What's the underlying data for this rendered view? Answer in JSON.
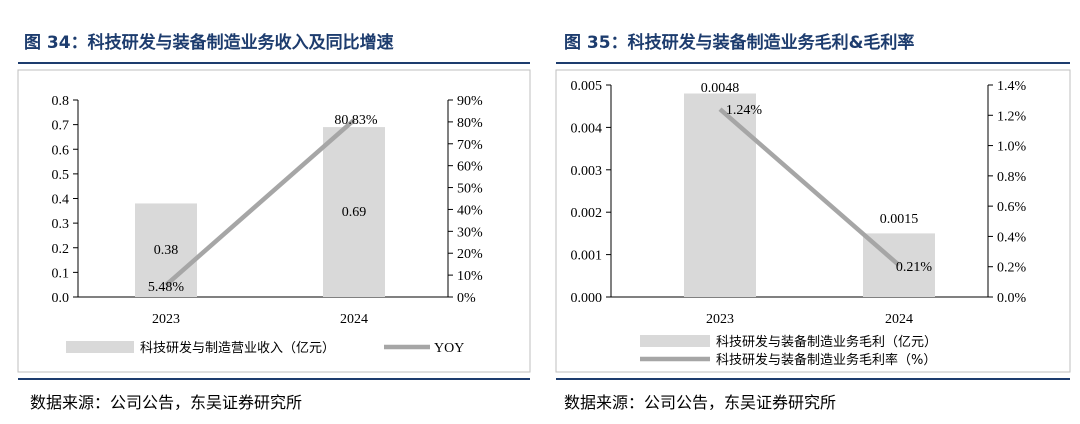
{
  "left": {
    "title": "图 34：科技研发与装备制造业务收入及同比增速",
    "source": "数据来源：公司公告，东吴证券研究所",
    "chart_data": {
      "type": "bar",
      "categories": [
        "2023",
        "2024"
      ],
      "series": [
        {
          "name": "科技研发与制造营业收入（亿元）",
          "type": "bar",
          "axis": "left",
          "values": [
            0.38,
            0.69
          ],
          "labels": [
            "0.38",
            "0.69"
          ],
          "color": "#d9d9d9"
        },
        {
          "name": "YOY",
          "type": "line",
          "axis": "right",
          "values": [
            5.48,
            80.83
          ],
          "labels": [
            "5.48%",
            "80.83%"
          ],
          "color": "#a6a6a6"
        }
      ],
      "ylim_left": [
        0,
        0.8
      ],
      "yticks_left": [
        "0.0",
        "0.1",
        "0.2",
        "0.3",
        "0.4",
        "0.5",
        "0.6",
        "0.7",
        "0.8"
      ],
      "ylim_right": [
        0,
        90
      ],
      "yticks_right": [
        "0%",
        "10%",
        "20%",
        "30%",
        "40%",
        "50%",
        "60%",
        "70%",
        "80%",
        "90%"
      ],
      "legend": "bottom",
      "grid": false
    }
  },
  "right": {
    "title": "图 35：科技研发与装备制造业务毛利&毛利率",
    "source": "数据来源：公司公告，东吴证券研究所",
    "chart_data": {
      "type": "bar",
      "categories": [
        "2023",
        "2024"
      ],
      "series": [
        {
          "name": "科技研发与装备制造业务毛利（亿元）",
          "type": "bar",
          "axis": "left",
          "values": [
            0.0048,
            0.0015
          ],
          "labels": [
            "0.0048",
            "0.0015"
          ],
          "color": "#d9d9d9"
        },
        {
          "name": "科技研发与装备制造业务毛利率（%）",
          "type": "line",
          "axis": "right",
          "values": [
            1.24,
            0.21
          ],
          "labels": [
            "1.24%",
            "0.21%"
          ],
          "color": "#a6a6a6"
        }
      ],
      "ylim_left": [
        0,
        0.005
      ],
      "yticks_left": [
        "0.000",
        "0.001",
        "0.002",
        "0.003",
        "0.004",
        "0.005"
      ],
      "ylim_right": [
        0,
        1.4
      ],
      "yticks_right": [
        "0.0%",
        "0.2%",
        "0.4%",
        "0.6%",
        "0.8%",
        "1.0%",
        "1.2%",
        "1.4%"
      ],
      "legend": "bottom",
      "grid": false
    }
  }
}
